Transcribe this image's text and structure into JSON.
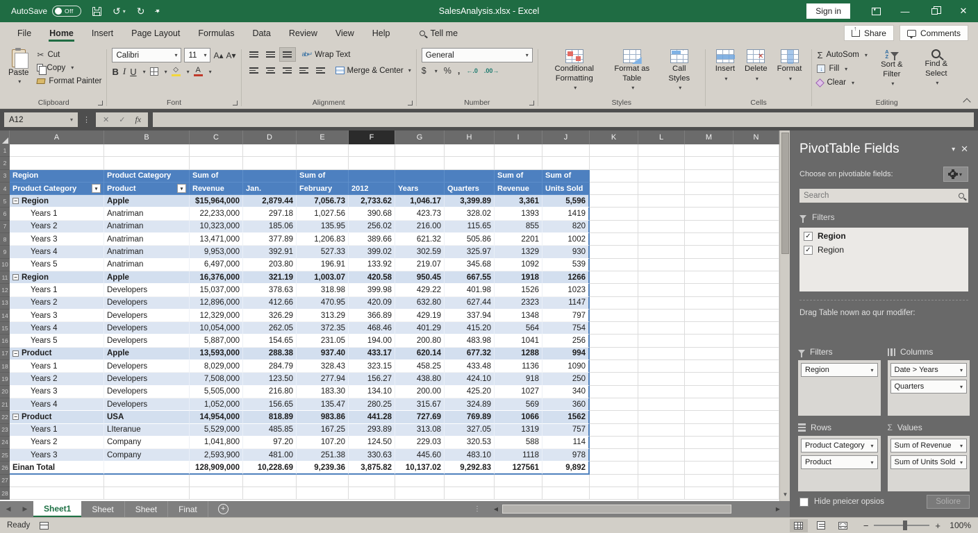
{
  "titlebar": {
    "autosave_label": "AutoSave",
    "autosave_state": "Off",
    "title": "SalesAnalysis.xlsx  -  Excel",
    "sign_in_label": "Sign in"
  },
  "menubar": {
    "tabs": [
      "File",
      "Home",
      "Insert",
      "Page Layout",
      "Formulas",
      "Data",
      "Review",
      "View",
      "Help"
    ],
    "active_tab_index": 1,
    "tell_me_label": "Tell me",
    "share_label": "Share",
    "comments_label": "Comments"
  },
  "ribbon": {
    "groups": {
      "clipboard": {
        "label": "Clipboard",
        "paste": "Paste",
        "cut": "Cut",
        "copy": "Copy",
        "format_painter": "Format Painter"
      },
      "font": {
        "label": "Font",
        "family": "Calibri",
        "size": "11",
        "bold": "B",
        "italic": "I",
        "underline": "U"
      },
      "alignment": {
        "label": "Alignment",
        "wrap_text": "Wrap Text",
        "merge_center": "Merge & Center"
      },
      "number": {
        "label": "Number",
        "format": "General",
        "currency": "$",
        "percent": "%",
        "comma": ",",
        "inc_dec": "←.0",
        "dec_dec": ".00→"
      },
      "styles": {
        "label": "Styles",
        "conditional": "Conditional Formatting",
        "format_table": "Format as Table",
        "cell_styles": "Call Styles"
      },
      "cells": {
        "label": "Cells",
        "insert": "Insert",
        "delete": "Delete",
        "format": "Format"
      },
      "editing": {
        "label": "Editing",
        "autosum": "AutoSom",
        "fill": "Fill",
        "clear": "Clear",
        "sort_filter": "Sort & Filter",
        "find_select": "Find & Select"
      }
    }
  },
  "formula_bar": {
    "name_box": "A12",
    "fx_label": "fx",
    "formula_value": ""
  },
  "grid": {
    "column_letters": [
      "A",
      "B",
      "C",
      "D",
      "E",
      "F",
      "G",
      "H",
      "I",
      "J",
      "K",
      "L",
      "M",
      "N"
    ],
    "selected_column": "F",
    "row_count": 28,
    "table": {
      "header_row_1": [
        "Region",
        "Product Category",
        "Sum of",
        "",
        "Sum of",
        "",
        "",
        "",
        "Sum of",
        "Sum of"
      ],
      "header_row_2": [
        "Product Category",
        "Product",
        "Revenue",
        "Jan.",
        "February",
        "2012",
        "Years",
        "Quarters",
        "Revenue",
        "Units Sold"
      ],
      "rows": [
        {
          "row": 5,
          "type": "subtotal",
          "cells": [
            "Region",
            "Apple",
            "$15,964,000",
            "2,879.44",
            "7,056.73",
            "2,733.62",
            "1,046.17",
            "3,399.89",
            "3,361",
            "5,596"
          ]
        },
        {
          "row": 6,
          "type": "data",
          "cells": [
            "Years 1",
            "Anatriman",
            "22,233,000",
            "297.18",
            "1,027.56",
            "390.68",
            "423.73",
            "328.02",
            "1393",
            "1419"
          ]
        },
        {
          "row": 7,
          "type": "data",
          "cells": [
            "Years 2",
            "Anatriman",
            "10,323,000",
            "185.06",
            "135.95",
            "256.02",
            "216.00",
            "115.65",
            "855",
            "820"
          ]
        },
        {
          "row": 8,
          "type": "data",
          "cells": [
            "Years 3",
            "Anatriman",
            "13,471,000",
            "377.89",
            "1,206.83",
            "389.66",
            "621.32",
            "505.86",
            "2201",
            "1002"
          ]
        },
        {
          "row": 9,
          "type": "data",
          "cells": [
            "Years 4",
            "Anatriman",
            "9,953,000",
            "392.91",
            "527.33",
            "399.02",
            "302.59",
            "325.97",
            "1329",
            "930"
          ]
        },
        {
          "row": 10,
          "type": "data",
          "cells": [
            "Years 5",
            "Anatriman",
            "6,497,000",
            "203.80",
            "196.91",
            "133.92",
            "219.07",
            "345.68",
            "1092",
            "539"
          ]
        },
        {
          "row": 11,
          "type": "subtotal",
          "cells": [
            "Region",
            "Apple",
            "16,376,000",
            "321.19",
            "1,003.07",
            "420.58",
            "950.45",
            "667.55",
            "1918",
            "1266"
          ]
        },
        {
          "row": 12,
          "type": "data",
          "cells": [
            "Years 1",
            "Developers",
            "15,037,000",
            "378.63",
            "318.98",
            "399.98",
            "429.22",
            "401.98",
            "1526",
            "1023"
          ]
        },
        {
          "row": 13,
          "type": "data",
          "cells": [
            "Years 2",
            "Developers",
            "12,896,000",
            "412.66",
            "470.95",
            "420.09",
            "632.80",
            "627.44",
            "2323",
            "1147"
          ]
        },
        {
          "row": 14,
          "type": "data",
          "cells": [
            "Years 3",
            "Developers",
            "12,329,000",
            "326.29",
            "313.29",
            "366.89",
            "429.19",
            "337.94",
            "1348",
            "797"
          ]
        },
        {
          "row": 15,
          "type": "data",
          "cells": [
            "Years 4",
            "Developers",
            "10,054,000",
            "262.05",
            "372.35",
            "468.46",
            "401.29",
            "415.20",
            "564",
            "754"
          ]
        },
        {
          "row": 16,
          "type": "data",
          "cells": [
            "Years 5",
            "Developers",
            "5,887,000",
            "154.65",
            "231.05",
            "194.00",
            "200.80",
            "483.98",
            "1041",
            "256"
          ]
        },
        {
          "row": 17,
          "type": "subtotal",
          "cells": [
            "Product",
            "Apple",
            "13,593,000",
            "288.38",
            "937.40",
            "433.17",
            "620.14",
            "677.32",
            "1288",
            "994"
          ]
        },
        {
          "row": 18,
          "type": "data",
          "cells": [
            "Years 1",
            "Developers",
            "8,029,000",
            "284.79",
            "328.43",
            "323.15",
            "458.25",
            "433.48",
            "1136",
            "1090"
          ]
        },
        {
          "row": 19,
          "type": "data",
          "cells": [
            "Years 2",
            "Developers",
            "7,508,000",
            "123.50",
            "277.94",
            "156.27",
            "438.80",
            "424.10",
            "918",
            "250"
          ]
        },
        {
          "row": 20,
          "type": "data",
          "cells": [
            "Years 3",
            "Developers",
            "5,505,000",
            "216.80",
            "183.30",
            "134.10",
            "200.00",
            "425.20",
            "1027",
            "340"
          ]
        },
        {
          "row": 21,
          "type": "data",
          "cells": [
            "Years 4",
            "Developers",
            "1,052,000",
            "156.65",
            "135.47",
            "280.25",
            "315.67",
            "324.89",
            "569",
            "360"
          ]
        },
        {
          "row": 22,
          "type": "subtotal",
          "cells": [
            "Product",
            "USA",
            "14,954,000",
            "818.89",
            "983.86",
            "441.28",
            "727.69",
            "769.89",
            "1066",
            "1562"
          ]
        },
        {
          "row": 23,
          "type": "data",
          "cells": [
            "Years 1",
            "LIteranue",
            "5,529,000",
            "485.85",
            "167.25",
            "293.89",
            "313.08",
            "327.05",
            "1319",
            "757"
          ]
        },
        {
          "row": 24,
          "type": "data",
          "cells": [
            "Years 2",
            "Company",
            "1,041,800",
            "97.20",
            "107.20",
            "124.50",
            "229.03",
            "320.53",
            "588",
            "114"
          ]
        },
        {
          "row": 25,
          "type": "data",
          "cells": [
            "Years 3",
            "Company",
            "2,593,900",
            "481.00",
            "251.38",
            "330.63",
            "445.60",
            "483.10",
            "1118",
            "978"
          ]
        },
        {
          "row": 26,
          "type": "total",
          "cells": [
            "Einan Total",
            "",
            "128,909,000",
            "10,228.69",
            "9,239.36",
            "3,875.82",
            "10,137.02",
            "9,292.83",
            "127561",
            "9,892"
          ]
        }
      ]
    }
  },
  "pivot_panel": {
    "title": "PivotTable Fields",
    "subtitle": "Choose on pivotiable fields:",
    "search_placeholder": "Search",
    "field_list_header": "Filters",
    "fields": [
      {
        "label": "Region",
        "checked": true,
        "bold": true
      },
      {
        "label": "Region",
        "checked": true,
        "bold": false
      }
    ],
    "drag_hint": "Drag Table nown ao qur modifer:",
    "areas": {
      "filters": {
        "label": "Filters",
        "items": [
          "Region"
        ]
      },
      "columns": {
        "label": "Columns",
        "items": [
          "Date > Years",
          "Quarters"
        ]
      },
      "rows": {
        "label": "Rows",
        "items": [
          "Product Category",
          "Product"
        ]
      },
      "values": {
        "label": "Values",
        "items": [
          "Sum of Revenue",
          "Sum of Units Sold"
        ]
      }
    },
    "defer_label": "Hide pneicer opsios",
    "update_button": "Soliore"
  },
  "sheet_bar": {
    "tabs": [
      {
        "label": "Sheet1",
        "active": true
      },
      {
        "label": "Sheet",
        "active": false
      },
      {
        "label": "Sheet",
        "active": false
      },
      {
        "label": "Finat",
        "active": false
      }
    ]
  },
  "status_bar": {
    "mode": "Ready",
    "zoom_level": "100%"
  }
}
